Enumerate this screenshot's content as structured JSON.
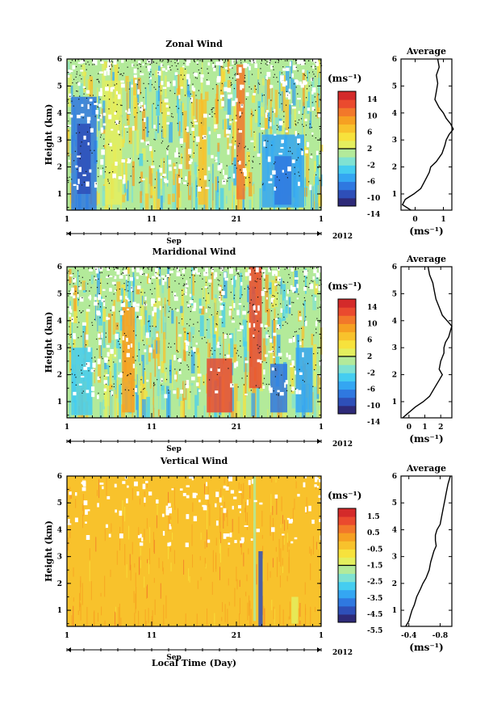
{
  "figure": {
    "xlabel": "Local Time (Day)",
    "month": "Sep",
    "year": "2012",
    "unit_label": "(ms⁻¹)",
    "avg_unit_label": "(ms⁻¹)"
  },
  "chart_data": [
    {
      "type": "heatmap",
      "title": "Zonal Wind",
      "ylabel": "Height (km)",
      "x_ticks": [
        "1",
        "11",
        "21",
        "1"
      ],
      "y_ticks": [
        "1",
        "2",
        "3",
        "4",
        "5",
        "6"
      ],
      "xlim_days": [
        1,
        31
      ],
      "ylim_km": [
        0.4,
        6
      ],
      "colorbar": {
        "unit": "(ms⁻¹)",
        "range": [
          -15,
          15
        ],
        "tick_labels": [
          "14",
          "10",
          "6",
          "2",
          "-2",
          "-6",
          "-10",
          "-14"
        ],
        "colors": [
          "#2e2a78",
          "#2e4fb8",
          "#2f78e0",
          "#34a6f2",
          "#45cdf0",
          "#7fe2d2",
          "#b3ea9a",
          "#e4ef5e",
          "#f7e23c",
          "#f8c22c",
          "#f6a022",
          "#f2782a",
          "#ea4a2e",
          "#d42a2a"
        ]
      },
      "patterns": [
        {
          "day0": 1.5,
          "day1": 4.5,
          "h0": 0.4,
          "h1": 4.6,
          "color": "#2f78e0"
        },
        {
          "day0": 2.2,
          "day1": 3.8,
          "h0": 1.0,
          "h1": 3.6,
          "color": "#2e4fb8"
        },
        {
          "day0": 5.5,
          "day1": 7.5,
          "h0": 0.6,
          "h1": 5.2,
          "color": "#e4ef5e"
        },
        {
          "day0": 16.5,
          "day1": 17.5,
          "h0": 0.6,
          "h1": 4.5,
          "color": "#f8c22c"
        },
        {
          "day0": 21.0,
          "day1": 22.0,
          "h0": 0.8,
          "h1": 5.8,
          "color": "#f2782a"
        },
        {
          "day0": 24.0,
          "day1": 29.0,
          "h0": 0.5,
          "h1": 3.2,
          "color": "#34a6f2"
        },
        {
          "day0": 25.5,
          "day1": 27.5,
          "h0": 0.6,
          "h1": 2.4,
          "color": "#2f78e0"
        }
      ],
      "profile": {
        "title": "Average",
        "xlabel": "(ms⁻¹)",
        "x_ticks": [
          0,
          1
        ],
        "xlim": [
          -0.5,
          1.3
        ],
        "heights": [
          0.4,
          0.6,
          0.8,
          1.0,
          1.2,
          1.5,
          1.8,
          2.0,
          2.2,
          2.5,
          2.8,
          3.0,
          3.2,
          3.4,
          3.6,
          3.8,
          4.0,
          4.2,
          4.5,
          4.8,
          5.1,
          5.4,
          5.7,
          6.0
        ],
        "values": [
          -0.15,
          -0.45,
          -0.35,
          -0.05,
          0.2,
          0.35,
          0.5,
          0.55,
          0.75,
          0.95,
          1.05,
          1.1,
          1.2,
          1.35,
          1.25,
          1.1,
          1.0,
          0.85,
          0.7,
          0.75,
          0.8,
          0.75,
          0.85,
          0.8
        ]
      }
    },
    {
      "type": "heatmap",
      "title": "Maridional Wind",
      "ylabel": "Height (km)",
      "x_ticks": [
        "1",
        "11",
        "21",
        "1"
      ],
      "y_ticks": [
        "1",
        "2",
        "3",
        "4",
        "5",
        "6"
      ],
      "xlim_days": [
        1,
        31
      ],
      "ylim_km": [
        0.4,
        6
      ],
      "colorbar": {
        "unit": "(ms⁻¹)",
        "range": [
          -15,
          15
        ],
        "tick_labels": [
          "14",
          "10",
          "6",
          "2",
          "-2",
          "-6",
          "-10",
          "-14"
        ],
        "colors": [
          "#2e2a78",
          "#2e4fb8",
          "#2f78e0",
          "#34a6f2",
          "#45cdf0",
          "#7fe2d2",
          "#b3ea9a",
          "#e4ef5e",
          "#f7e23c",
          "#f8c22c",
          "#f6a022",
          "#f2782a",
          "#ea4a2e",
          "#d42a2a"
        ]
      },
      "patterns": [
        {
          "day0": 1.5,
          "day1": 4.0,
          "h0": 0.5,
          "h1": 3.0,
          "color": "#45cdf0"
        },
        {
          "day0": 7.5,
          "day1": 9.0,
          "h0": 0.6,
          "h1": 4.5,
          "color": "#f6a022"
        },
        {
          "day0": 17.5,
          "day1": 20.5,
          "h0": 0.6,
          "h1": 2.6,
          "color": "#ea4a2e"
        },
        {
          "day0": 22.5,
          "day1": 24.0,
          "h0": 1.5,
          "h1": 6.0,
          "color": "#ea4a2e"
        },
        {
          "day0": 25.0,
          "day1": 27.0,
          "h0": 0.6,
          "h1": 2.4,
          "color": "#2f78e0"
        },
        {
          "day0": 28.0,
          "day1": 30.0,
          "h0": 0.6,
          "h1": 3.0,
          "color": "#34a6f2"
        }
      ],
      "profile": {
        "title": "Average",
        "xlabel": "(ms⁻¹)",
        "x_ticks": [
          0,
          1,
          2
        ],
        "xlim": [
          -0.5,
          2.7
        ],
        "heights": [
          0.4,
          0.6,
          0.8,
          1.0,
          1.2,
          1.5,
          1.8,
          2.0,
          2.2,
          2.5,
          2.8,
          3.0,
          3.2,
          3.4,
          3.6,
          3.8,
          4.0,
          4.2,
          4.5,
          4.8,
          5.1,
          5.4,
          5.7,
          6.0
        ],
        "values": [
          -0.4,
          0.0,
          0.4,
          0.9,
          1.3,
          1.6,
          1.9,
          2.1,
          1.9,
          2.0,
          2.2,
          2.2,
          2.3,
          2.5,
          2.6,
          2.7,
          2.4,
          2.1,
          1.9,
          1.7,
          1.6,
          1.5,
          1.3,
          1.2
        ]
      }
    },
    {
      "type": "heatmap",
      "title": "Vertical Wind",
      "ylabel": "Height (km)",
      "x_ticks": [
        "1",
        "11",
        "21",
        "1"
      ],
      "y_ticks": [
        "1",
        "2",
        "3",
        "4",
        "5",
        "6"
      ],
      "xlim_days": [
        1,
        31
      ],
      "ylim_km": [
        0.4,
        6
      ],
      "colorbar": {
        "unit": "(ms⁻¹)",
        "range": [
          -6,
          2
        ],
        "tick_labels": [
          "1.5",
          "0.5",
          "-0.5",
          "-1.5",
          "-2.5",
          "-3.5",
          "-4.5",
          "-5.5"
        ],
        "colors": [
          "#2e2a78",
          "#2e4fb8",
          "#2f78e0",
          "#34a6f2",
          "#45cdf0",
          "#7fe2d2",
          "#b3ea9a",
          "#e4ef5e",
          "#f7e23c",
          "#f8c22c",
          "#f6a022",
          "#f2782a",
          "#ea4a2e",
          "#d42a2a"
        ]
      },
      "patterns": [
        {
          "day0": 23.6,
          "day1": 24.1,
          "h0": 0.4,
          "h1": 3.2,
          "color": "#2e4fb8"
        },
        {
          "day0": 23.0,
          "day1": 23.3,
          "h0": 0.6,
          "h1": 6.0,
          "color": "#b3ea9a"
        },
        {
          "day0": 27.5,
          "day1": 28.3,
          "h0": 0.5,
          "h1": 1.5,
          "color": "#e4ef5e"
        }
      ],
      "profile": {
        "title": "Average",
        "xlabel": "(ms⁻¹)",
        "x_ticks": [
          -0.4,
          -0.8
        ],
        "xlim": [
          -0.3,
          -0.95
        ],
        "heights": [
          0.4,
          0.6,
          0.8,
          1.0,
          1.2,
          1.5,
          1.8,
          2.0,
          2.2,
          2.5,
          2.8,
          3.0,
          3.2,
          3.4,
          3.6,
          3.8,
          4.0,
          4.2,
          4.5,
          4.8,
          5.1,
          5.4,
          5.7,
          6.0
        ],
        "values": [
          -0.36,
          -0.4,
          -0.42,
          -0.44,
          -0.47,
          -0.5,
          -0.55,
          -0.58,
          -0.62,
          -0.66,
          -0.68,
          -0.7,
          -0.72,
          -0.75,
          -0.74,
          -0.74,
          -0.76,
          -0.8,
          -0.82,
          -0.84,
          -0.86,
          -0.88,
          -0.9,
          -0.93
        ]
      }
    }
  ]
}
